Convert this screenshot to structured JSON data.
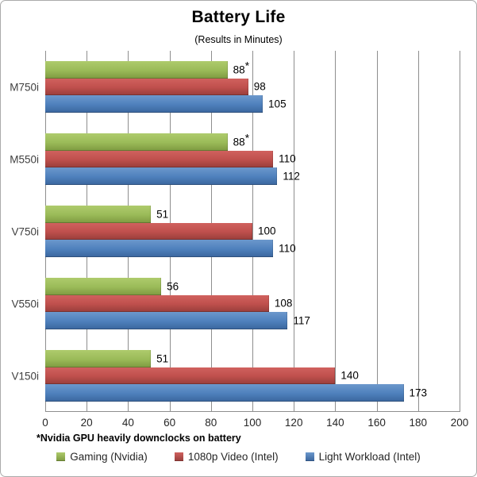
{
  "title": "Battery Life",
  "subtitle": "(Results in Minutes)",
  "footnote": "*Nvidia GPU heavily downclocks on battery",
  "colors": {
    "gridline": "#8e8e8e",
    "axis_text": "#3f3f3f",
    "series_green": "#9bbb59",
    "series_red": "#c0504d",
    "series_blue": "#4f81bd"
  },
  "chart_data": {
    "type": "bar",
    "orientation": "horizontal",
    "title": "Battery Life",
    "subtitle": "(Results in Minutes)",
    "xlabel": "",
    "ylabel": "",
    "xlim": [
      0,
      200
    ],
    "x_ticks": [
      0,
      20,
      40,
      60,
      80,
      100,
      120,
      140,
      160,
      180,
      200
    ],
    "grid": "vertical",
    "legend_position": "bottom",
    "categories": [
      "M750i",
      "M550i",
      "V750i",
      "V550i",
      "V150i"
    ],
    "series": [
      {
        "name": "Gaming (Nvidia)",
        "color": "#9bbb59",
        "gradient_light": "#aecb6c",
        "gradient_dark": "#7e9a40",
        "values": [
          88,
          88,
          51,
          56,
          51
        ],
        "labels": [
          "88*",
          "88*",
          "51",
          "56",
          "51"
        ]
      },
      {
        "name": "1080p Video (Intel)",
        "color": "#c0504d",
        "gradient_light": "#d0615e",
        "gradient_dark": "#993e3b",
        "values": [
          98,
          110,
          100,
          108,
          140
        ],
        "labels": [
          "98",
          "110",
          "100",
          "108",
          "140"
        ]
      },
      {
        "name": "Light Workload (Intel)",
        "color": "#4f81bd",
        "gradient_light": "#6c98cc",
        "gradient_dark": "#3a669e",
        "values": [
          105,
          112,
          110,
          117,
          173
        ],
        "labels": [
          "105",
          "112",
          "110",
          "117",
          "173"
        ]
      }
    ]
  }
}
